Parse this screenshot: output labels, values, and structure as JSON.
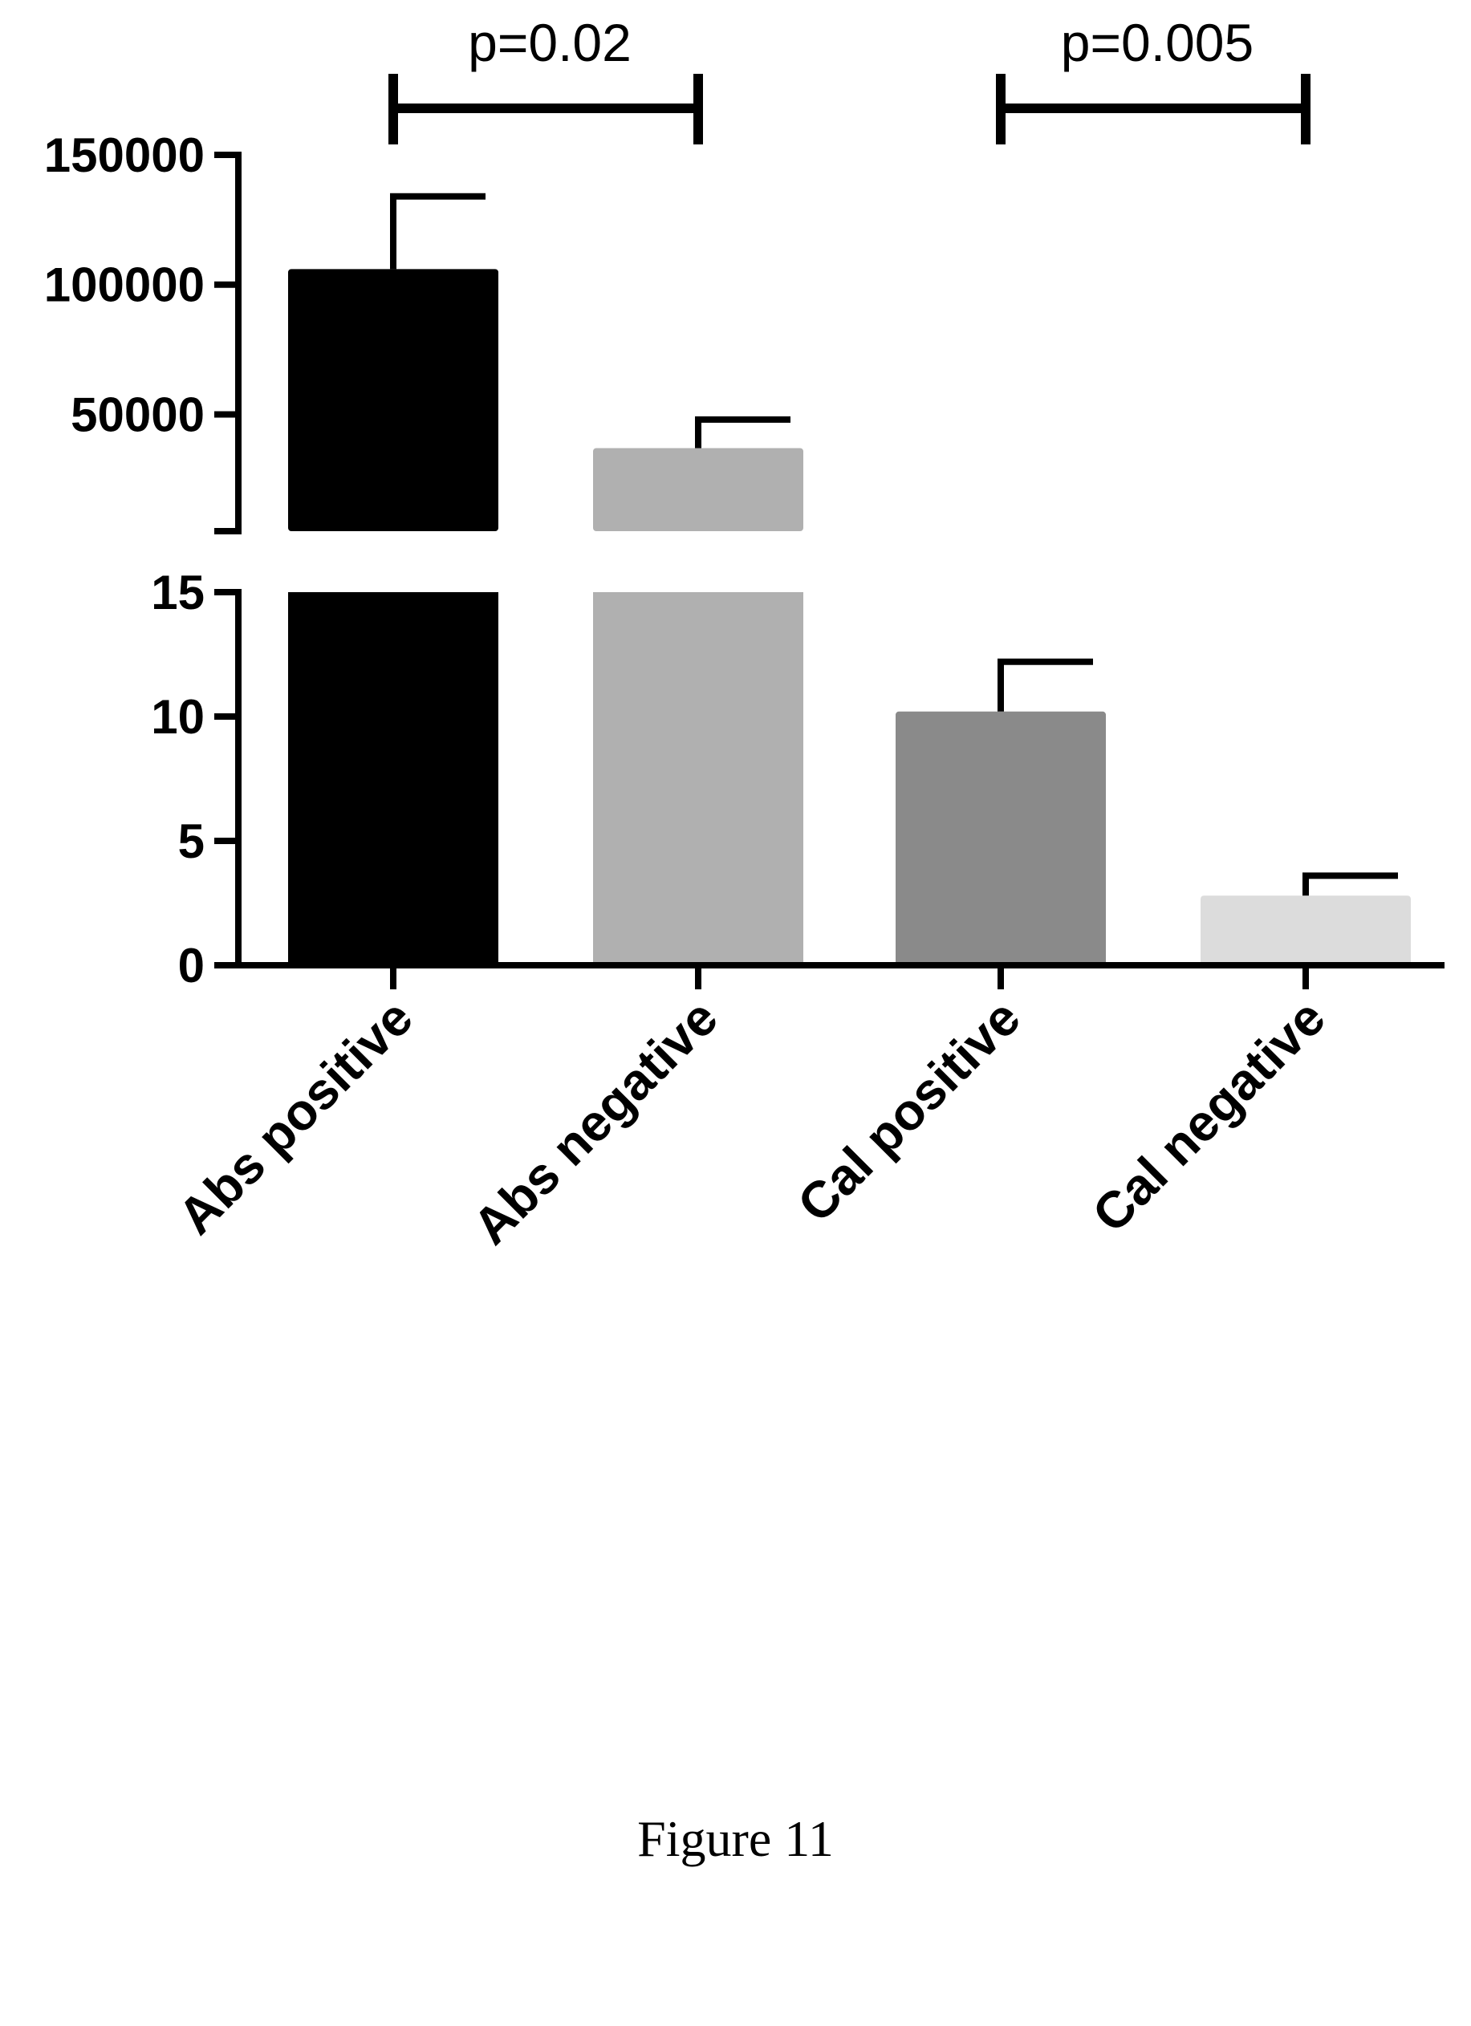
{
  "chart_data": {
    "type": "bar",
    "categories": [
      "Abs positive",
      "Abs negative",
      "Cal positive",
      "Cal negative"
    ],
    "values": [
      106000,
      37000,
      10.2,
      2.8
    ],
    "error": [
      28000,
      11000,
      2.0,
      0.8
    ],
    "colors": [
      "#000000",
      "#b0b0b0",
      "#8a8a8a",
      "#dcdcdc"
    ],
    "axis": {
      "broken": true,
      "lower": {
        "min": 0,
        "max": 15,
        "ticks": [
          0,
          5,
          10,
          15
        ]
      },
      "upper": {
        "min": 5000,
        "max": 150000,
        "ticks": [
          50000,
          100000,
          150000
        ]
      }
    },
    "comparisons": [
      {
        "from": 0,
        "to": 1,
        "label": "p=0.02"
      },
      {
        "from": 2,
        "to": 3,
        "label": "p=0.005"
      }
    ],
    "title": "",
    "xlabel": "",
    "ylabel": "",
    "grid": false,
    "legend": "none"
  },
  "caption": "Figure 11"
}
